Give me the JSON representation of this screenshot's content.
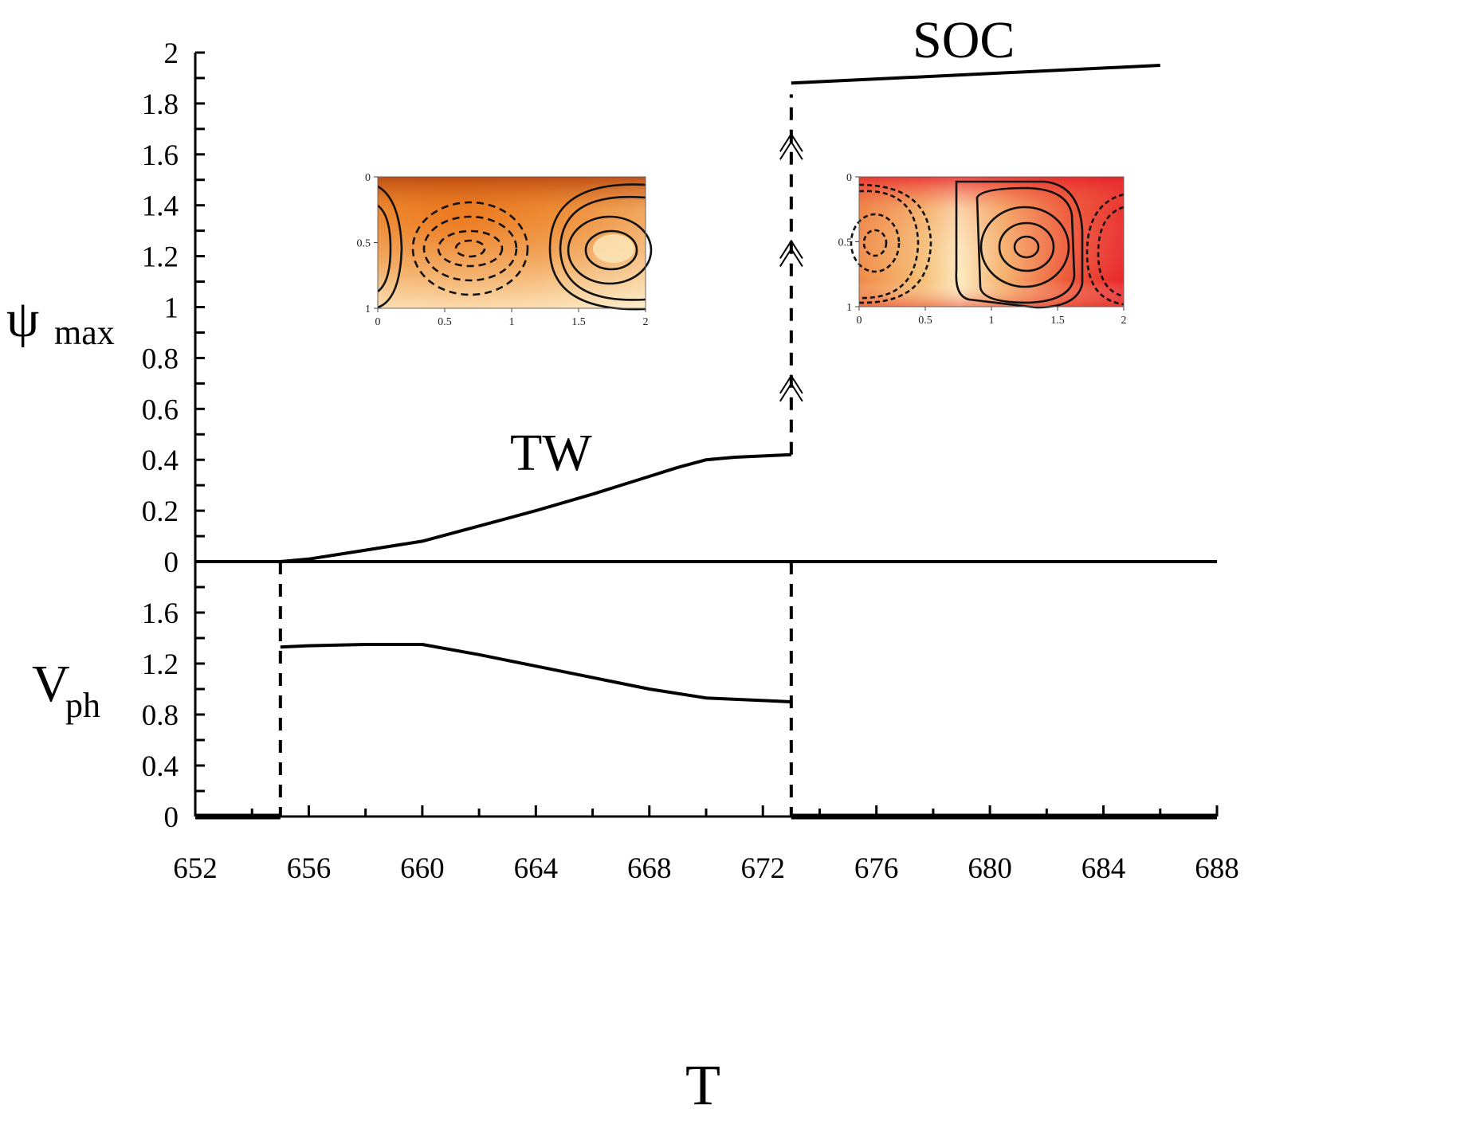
{
  "chart_data": {
    "type": "line",
    "xlabel": "T",
    "x_ticks": [
      "652",
      "656",
      "660",
      "664",
      "668",
      "672",
      "676",
      "680",
      "684",
      "688"
    ],
    "xlim": [
      652,
      688
    ],
    "panels": [
      {
        "id": "psi",
        "ylabel_main": "ψ",
        "ylabel_sub": "max",
        "ylim": [
          0,
          2
        ],
        "y_ticks": [
          "0",
          "0.2",
          "0.4",
          "0.6",
          "0.8",
          "1",
          "1.2",
          "1.4",
          "1.6",
          "1.8",
          "2"
        ],
        "series": [
          {
            "name": "TW",
            "x": [
              655,
              656,
              658,
              660,
              662,
              664,
              666,
              668,
              669,
              670,
              671,
              672,
              673
            ],
            "y": [
              0,
              0.01,
              0.045,
              0.08,
              0.14,
              0.2,
              0.265,
              0.335,
              0.37,
              0.4,
              0.41,
              0.415,
              0.42
            ]
          },
          {
            "name": "SOC",
            "x": [
              673,
              686
            ],
            "y": [
              1.88,
              1.95
            ]
          },
          {
            "name": "",
            "x": [
              652,
              688
            ],
            "y": [
              0,
              0
            ]
          }
        ],
        "jump": {
          "x": 673,
          "from": 0.42,
          "to": 1.88
        },
        "arrows_at_y": [
          0.73,
          1.26,
          1.68
        ],
        "annotations": [
          "TW",
          "SOC"
        ]
      },
      {
        "id": "vph",
        "ylabel_main": "V",
        "ylabel_sub": "ph",
        "ylim": [
          0,
          2
        ],
        "y_ticks": [
          "0",
          "0.4",
          "0.8",
          "1.2",
          "1.6"
        ],
        "series": [
          {
            "name": "TW",
            "x": [
              655,
              656,
              658,
              660,
              662,
              664,
              666,
              668,
              670,
              672,
              673
            ],
            "y": [
              1.33,
              1.34,
              1.35,
              1.35,
              1.27,
              1.18,
              1.09,
              1.0,
              0.93,
              0.91,
              0.9
            ]
          },
          {
            "name": "",
            "x": [
              652,
              655
            ],
            "y": [
              0,
              0
            ]
          },
          {
            "name": "",
            "x": [
              673,
              688
            ],
            "y": [
              0,
              0
            ]
          }
        ],
        "dashed_x": [
          655,
          673
        ]
      }
    ],
    "insets": [
      {
        "id": "tw-inset",
        "x_ticks": [
          "0",
          "0.5",
          "1",
          "1.5",
          "2"
        ],
        "y_ticks": [
          "0",
          "0.5",
          "1"
        ]
      },
      {
        "id": "soc-inset",
        "x_ticks": [
          "0",
          "0.5",
          "1",
          "1.5",
          "2"
        ],
        "y_ticks": [
          "0",
          "0.5",
          "1"
        ]
      }
    ],
    "grid": false
  }
}
